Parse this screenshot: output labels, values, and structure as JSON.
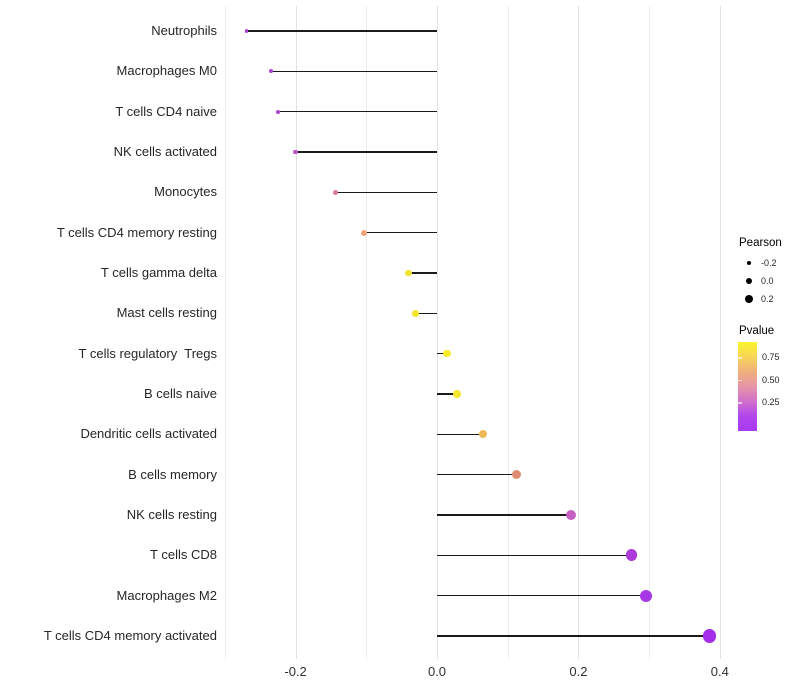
{
  "chart_data": {
    "type": "scatter",
    "variant": "lollipop-horizontal",
    "title": "",
    "xlabel": "",
    "ylabel": "",
    "xlim": [
      -0.32,
      0.5
    ],
    "baseline": 0.0,
    "grid": "vertical-only",
    "legend_position": "right",
    "x_ticks": [
      {
        "value": -0.2,
        "label": "-0.2"
      },
      {
        "value": 0.0,
        "label": "0.0"
      },
      {
        "value": 0.2,
        "label": "0.2"
      },
      {
        "value": 0.4,
        "label": "0.4"
      }
    ],
    "gridline_values": [
      -0.3,
      -0.2,
      -0.1,
      0.0,
      0.1,
      0.2,
      0.3,
      0.4
    ],
    "points": [
      {
        "label": "Neutrophils",
        "pearson": -0.27,
        "color": "#AC40D4"
      },
      {
        "label": "Macrophages M0",
        "pearson": -0.235,
        "color": "#AE44D2"
      },
      {
        "label": "T cells CD4 naive",
        "pearson": -0.225,
        "color": "#AF46D0"
      },
      {
        "label": "NK cells activated",
        "pearson": -0.2,
        "color": "#BC52C6"
      },
      {
        "label": "Monocytes",
        "pearson": -0.143,
        "color": "#D9799B"
      },
      {
        "label": "T cells CD4 memory resting",
        "pearson": -0.103,
        "color": "#F0A47C"
      },
      {
        "label": "T cells gamma delta",
        "pearson": -0.04,
        "color": "#F2E32E"
      },
      {
        "label": "Mast cells resting",
        "pearson": -0.031,
        "color": "#F3E52C"
      },
      {
        "label": "T cells regulatory  Tregs",
        "pearson": 0.014,
        "color": "#F7EC27"
      },
      {
        "label": "B cells naive",
        "pearson": 0.028,
        "color": "#F4E52E"
      },
      {
        "label": "Dendritic cells activated",
        "pearson": 0.065,
        "color": "#EFB95A"
      },
      {
        "label": "B cells memory",
        "pearson": 0.112,
        "color": "#DE8B71"
      },
      {
        "label": "NK cells resting",
        "pearson": 0.19,
        "color": "#C560C0"
      },
      {
        "label": "T cells CD8",
        "pearson": 0.275,
        "color": "#AC3BDA"
      },
      {
        "label": "Macrophages M2",
        "pearson": 0.295,
        "color": "#A737E4"
      },
      {
        "label": "T cells CD4 memory activated",
        "pearson": 0.385,
        "color": "#A52FE9"
      }
    ],
    "stem_color": "#1A1A1A",
    "background": "#FFFFFF",
    "legend": {
      "size": {
        "title": "Pearson",
        "dot_color": "#000000",
        "entries": [
          {
            "label": "-0.2",
            "value": -0.2
          },
          {
            "label": "0.0",
            "value": 0.0
          },
          {
            "label": "0.2",
            "value": 0.2
          }
        ]
      },
      "color": {
        "title": "Pvalue",
        "tick_labels": [
          "0.75",
          "0.50",
          "0.25"
        ],
        "gradient_stops": [
          "#FBF42C",
          "#F7D458",
          "#F1B07C",
          "#E695A8",
          "#D06FCC",
          "#B246EC",
          "#A83AF2"
        ]
      }
    }
  }
}
